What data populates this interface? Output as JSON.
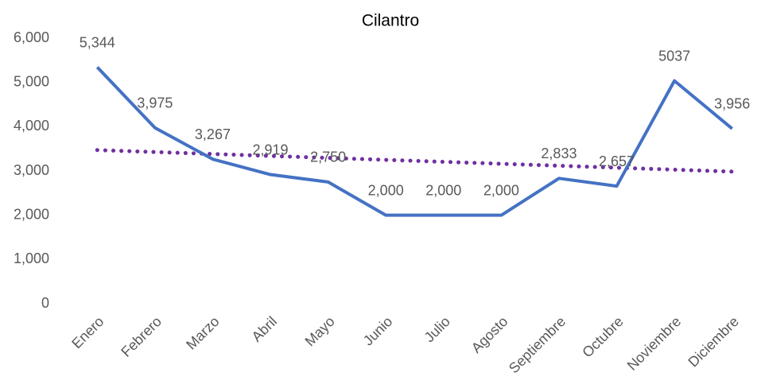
{
  "chart_data": {
    "type": "line",
    "title": "Cilantro",
    "categories": [
      "Enero",
      "Febrero",
      "Marzo",
      "Abril",
      "Mayo",
      "Junio",
      "Julio",
      "Agosto",
      "Septiembre",
      "Octubre",
      "Noviembre",
      "Diciembre"
    ],
    "series": [
      {
        "color": "#4472c4",
        "values": [
          5344,
          3975,
          3267,
          2919,
          2750,
          2000,
          2000,
          2000,
          2833,
          2657,
          5037,
          3956
        ],
        "value_labels": [
          "5,344",
          "3,975",
          "3,267",
          "2,919",
          "2,750",
          "2,000",
          "2,000",
          "2,000",
          "2,833",
          "2,657",
          "5037",
          "3,956"
        ]
      }
    ],
    "trendline": {
      "color": "#7030a0",
      "values": [
        3472,
        2985
      ]
    },
    "ylim": [
      0,
      6000
    ],
    "yticks": [
      0,
      {
        "value": 1000,
        "label": "1,000"
      },
      {
        "value": 2000,
        "label": "2,000"
      },
      {
        "value": 3000,
        "label": "3,000"
      },
      {
        "value": 4000,
        "label": "4,000"
      },
      {
        "value": 5000,
        "label": "5,000"
      },
      {
        "value": 6000,
        "label": "6,000"
      }
    ],
    "grid": false
  }
}
